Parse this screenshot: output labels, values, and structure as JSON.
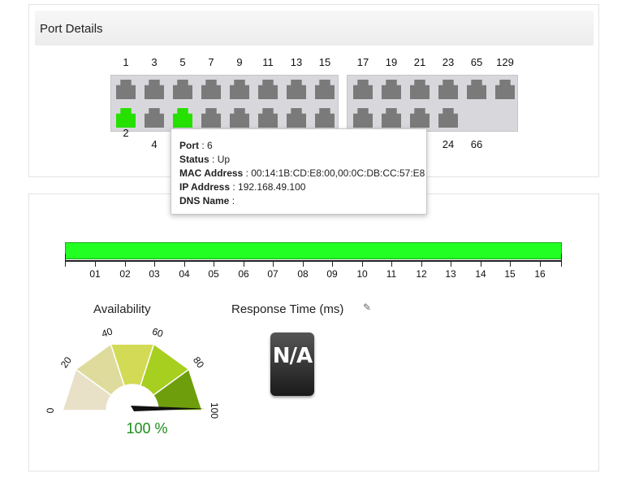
{
  "port_details": {
    "title": "Port Details",
    "top_labels_left": [
      "1",
      "3",
      "5",
      "7",
      "9",
      "11",
      "13",
      "15"
    ],
    "top_labels_right": [
      "17",
      "19",
      "21",
      "23",
      "65",
      "129"
    ],
    "bottom_labels": [
      "2",
      "4",
      "24",
      "66"
    ],
    "port_up_color": "#26e000",
    "port_down_color": "#7a7a7a"
  },
  "tooltip": {
    "port_label": "Port",
    "port_value": ": 6",
    "status_label": "Status",
    "status_value": " : Up",
    "mac_label": "MAC Address",
    "mac_value": " : 00:14:1B:CD:E8:00,00:0C:DB:CC:57:E8",
    "ip_label": "IP Address",
    "ip_value": " : 192.168.49.100",
    "dns_label": "DNS Name",
    "dns_value": " :"
  },
  "availability_timeline": {
    "bar_color": "#22ff22",
    "labels": [
      "01",
      "02",
      "03",
      "04",
      "05",
      "06",
      "07",
      "08",
      "09",
      "10",
      "11",
      "12",
      "13",
      "14",
      "15",
      "16"
    ]
  },
  "availability_gauge": {
    "title": "Availability",
    "value_percent": 100,
    "value_text": "100 %",
    "scale_labels": [
      "0",
      "20",
      "40",
      "60",
      "80",
      "100"
    ]
  },
  "response_time": {
    "title": "Response Time (ms)",
    "value_text": "N/A",
    "edit_icon": "pencil-icon"
  }
}
